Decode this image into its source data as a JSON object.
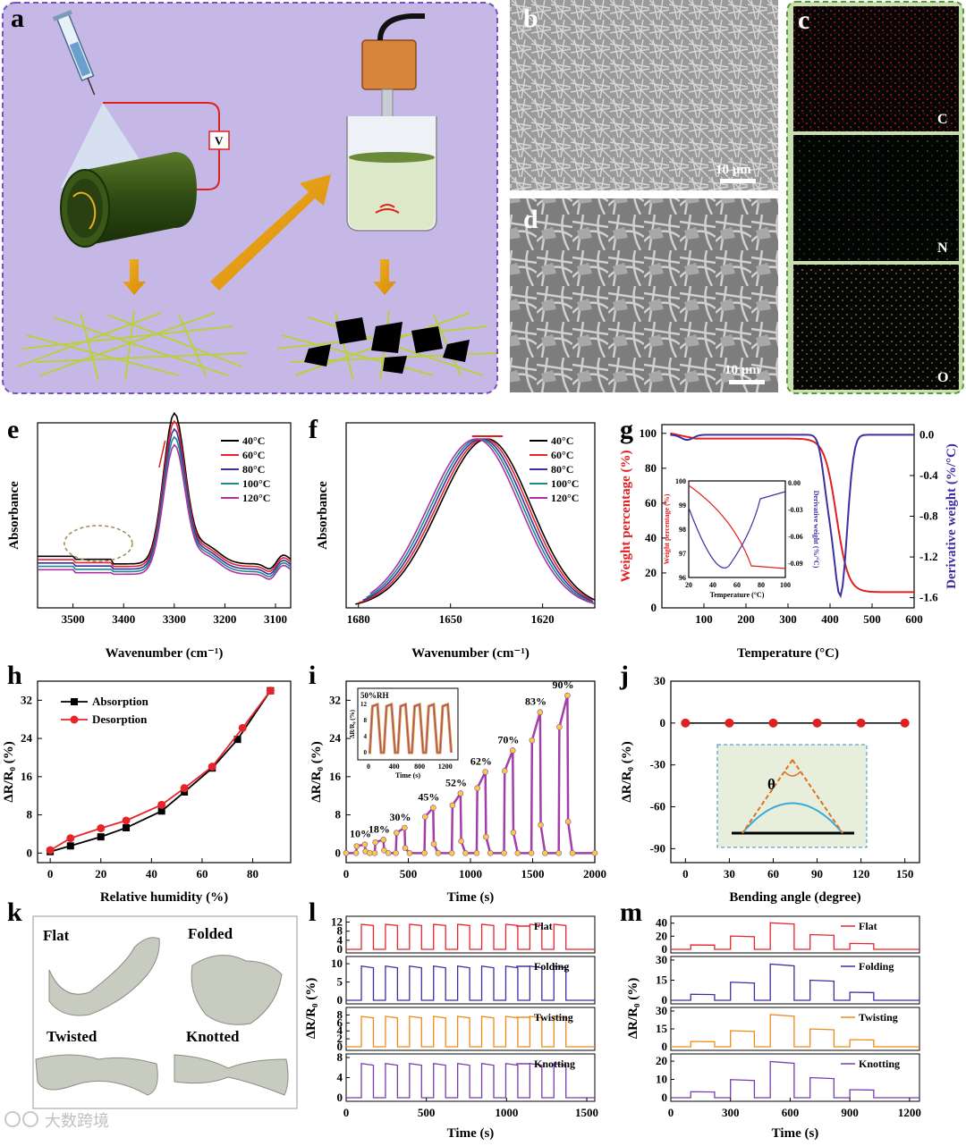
{
  "figure": {
    "panel_labels": [
      "a",
      "b",
      "c",
      "d",
      "e",
      "f",
      "g",
      "h",
      "i",
      "j",
      "k",
      "l",
      "m"
    ],
    "scale_bar_b": "10 μm",
    "scale_bar_d": "10 μm",
    "voltage_label": "V",
    "eds_elements": [
      "C",
      "N",
      "O"
    ],
    "watermark": "大数跨境",
    "shape_labels": [
      "Flat",
      "Folded",
      "Twisted",
      "Knotted"
    ]
  },
  "chart_data": [
    {
      "id": "e",
      "type": "line",
      "title": "",
      "xlabel": "Wavenumber (cm⁻¹)",
      "ylabel": "Absorbance",
      "xlim": [
        3570,
        3070
      ],
      "x_ticks": [
        3500,
        3400,
        3300,
        3200,
        3100
      ],
      "series": [
        {
          "name": "40°C",
          "color": "#000000"
        },
        {
          "name": "60°C",
          "color": "#e8242a"
        },
        {
          "name": "80°C",
          "color": "#3d2fa0"
        },
        {
          "name": "100°C",
          "color": "#1a8a8a"
        },
        {
          "name": "120°C",
          "color": "#b02fa5"
        }
      ],
      "peak_x": 3300
    },
    {
      "id": "f",
      "type": "line",
      "title": "",
      "xlabel": "Wavenumber (cm⁻¹)",
      "ylabel": "Absorbance",
      "xlim": [
        1684,
        1603
      ],
      "x_ticks": [
        1680,
        1650,
        1620
      ],
      "series": [
        {
          "name": "40°C",
          "color": "#000000"
        },
        {
          "name": "60°C",
          "color": "#e8242a"
        },
        {
          "name": "80°C",
          "color": "#3d2fa0"
        },
        {
          "name": "100°C",
          "color": "#1a8a8a"
        },
        {
          "name": "120°C",
          "color": "#b02fa5"
        }
      ],
      "peak_x": 1638
    },
    {
      "id": "g",
      "type": "line",
      "xlabel": "Temperature (°C)",
      "ylabel": "Weight percentage (%)",
      "y2label": "Derivative weight (%/°C)",
      "xlim": [
        0,
        600
      ],
      "ylim": [
        0,
        105
      ],
      "y2lim": [
        -1.7,
        0.1
      ],
      "x_ticks": [
        100,
        200,
        300,
        400,
        500,
        600
      ],
      "y_ticks": [
        0,
        20,
        40,
        60,
        80,
        100
      ],
      "y2_ticks": [
        "0.0",
        "-0.4",
        "-0.8",
        "-1.2",
        "-1.6"
      ],
      "inset": {
        "xlabel": "Temperature (°C)",
        "ylabel": "Weight percentage (%)",
        "y2label": "Derivative weight (%/°C)",
        "x_ticks": [
          20,
          40,
          60,
          80,
          100
        ],
        "y_ticks": [
          96,
          97,
          98,
          99,
          100
        ],
        "y2_ticks": [
          "0.00",
          "-0.03",
          "-0.06",
          "-0.09"
        ]
      }
    },
    {
      "id": "h",
      "type": "line",
      "xlabel": "Relative humidity (%)",
      "ylabel": "ΔR/R₀ (%)",
      "xlim": [
        -5,
        95
      ],
      "ylim": [
        -2,
        36
      ],
      "x_ticks": [
        0,
        20,
        40,
        60,
        80
      ],
      "y_ticks": [
        0,
        8,
        16,
        24,
        32
      ],
      "series": [
        {
          "name": "Absorption",
          "color": "#000000",
          "marker": "square",
          "x": [
            0,
            8,
            20,
            30,
            44,
            53,
            64,
            74,
            87
          ],
          "y": [
            0.3,
            1.5,
            3.4,
            5.3,
            8.8,
            12.8,
            17.8,
            23.8,
            34
          ]
        },
        {
          "name": "Desorption",
          "color": "#e8242a",
          "marker": "circle",
          "x": [
            0,
            8,
            20,
            30,
            44,
            53,
            64,
            76,
            87
          ],
          "y": [
            0.6,
            3.1,
            5.2,
            6.8,
            10.1,
            13.6,
            18.1,
            26.2,
            34
          ]
        }
      ]
    },
    {
      "id": "i",
      "type": "line",
      "xlabel": "Time (s)",
      "ylabel": "ΔR/R₀ (%)",
      "xlim": [
        0,
        2000
      ],
      "ylim": [
        -2,
        36
      ],
      "x_ticks": [
        0,
        500,
        1000,
        1500,
        2000
      ],
      "y_ticks": [
        0,
        8,
        16,
        24,
        32
      ],
      "steps": [
        {
          "label": "10%",
          "t": 150,
          "v": 1.8
        },
        {
          "label": "18%",
          "t": 300,
          "v": 2.8
        },
        {
          "label": "30%",
          "t": 470,
          "v": 5.3
        },
        {
          "label": "45%",
          "t": 700,
          "v": 9.5
        },
        {
          "label": "52%",
          "t": 920,
          "v": 12.5
        },
        {
          "label": "62%",
          "t": 1120,
          "v": 17
        },
        {
          "label": "70%",
          "t": 1340,
          "v": 21.5
        },
        {
          "label": "83%",
          "t": 1560,
          "v": 29.5
        },
        {
          "label": "90%",
          "t": 1780,
          "v": 33
        }
      ],
      "inset": {
        "title": "50%RH",
        "xlabel": "Time (s)",
        "ylabel": "ΔR/R₀ (%)",
        "x_ticks": [
          0,
          400,
          800,
          1200
        ],
        "y_ticks": [
          0,
          4,
          8,
          12
        ]
      }
    },
    {
      "id": "j",
      "type": "scatter",
      "xlabel": "Bending angle (degree)",
      "ylabel": "ΔR/R₀ (%)",
      "xlim": [
        -10,
        160
      ],
      "ylim": [
        -100,
        30
      ],
      "x_ticks": [
        0,
        30,
        60,
        90,
        120,
        150
      ],
      "y_ticks": [
        30,
        0,
        -30,
        -60,
        -90
      ],
      "x": [
        0,
        30,
        60,
        90,
        120,
        150
      ],
      "y": [
        0,
        0,
        0,
        0,
        0,
        0
      ],
      "inset_label": "θ"
    },
    {
      "id": "l",
      "type": "line",
      "xlabel": "Time (s)",
      "ylabel": "ΔR/R₀ (%)",
      "xlim": [
        0,
        1550
      ],
      "x_ticks": [
        0,
        500,
        1000,
        1500
      ],
      "series": [
        {
          "name": "Flat",
          "color": "#e8242a",
          "ticks": [
            12,
            8,
            4,
            0
          ],
          "max": 13
        },
        {
          "name": "Folding",
          "color": "#3d2fa0",
          "ticks": [
            10,
            5,
            0
          ],
          "max": 11
        },
        {
          "name": "Twisting",
          "color": "#f08a1a",
          "ticks": [
            8,
            6,
            4,
            2,
            0
          ],
          "max": 9
        },
        {
          "name": "Knotting",
          "color": "#7a3ab0",
          "ticks": [
            8,
            4,
            0
          ],
          "max": 8
        }
      ]
    },
    {
      "id": "m",
      "type": "line",
      "xlabel": "Time (s)",
      "ylabel": "ΔR/R₀ (%)",
      "xlim": [
        0,
        1250
      ],
      "x_ticks": [
        0,
        300,
        600,
        900,
        1200
      ],
      "series": [
        {
          "name": "Flat",
          "color": "#e8242a",
          "ticks": [
            40,
            20,
            0
          ],
          "max": 45
        },
        {
          "name": "Folding",
          "color": "#3d2fa0",
          "ticks": [
            30,
            15,
            0
          ],
          "max": 30
        },
        {
          "name": "Twisting",
          "color": "#f08a1a",
          "ticks": [
            30,
            15,
            0
          ],
          "max": 30
        },
        {
          "name": "Knotting",
          "color": "#7a3ab0",
          "ticks": [
            20,
            10,
            0
          ],
          "max": 22
        }
      ]
    }
  ]
}
